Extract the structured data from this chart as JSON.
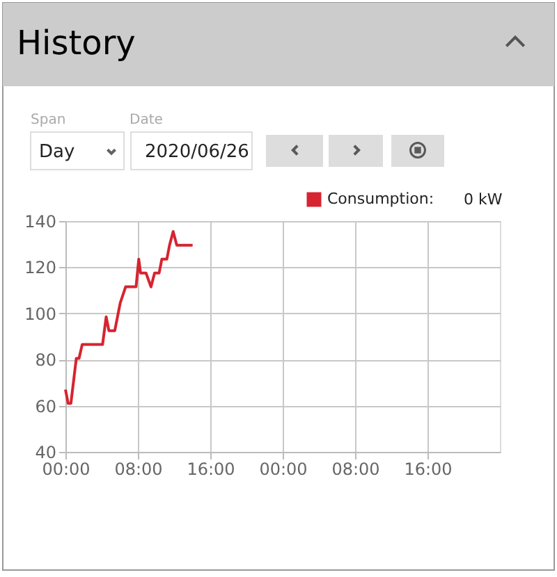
{
  "chart_data": {
    "type": "line",
    "title": "History",
    "annotations": [
      "Span",
      "Day",
      "Date",
      "2020/06/26",
      "0 kW"
    ],
    "x": [
      "2020-06-26T00:00",
      "2020-06-26T00:18",
      "2020-06-26T00:36",
      "2020-06-26T01:12",
      "2020-06-26T01:30",
      "2020-06-26T01:51",
      "2020-06-26T04:06",
      "2020-06-26T04:30",
      "2020-06-26T04:48",
      "2020-06-26T05:27",
      "2020-06-26T05:45",
      "2020-06-26T06:03",
      "2020-06-26T06:39",
      "2020-06-26T07:48",
      "2020-06-26T08:06",
      "2020-06-26T08:18",
      "2020-06-26T08:54",
      "2020-06-26T09:27",
      "2020-06-26T09:51",
      "2020-06-26T10:21",
      "2020-06-26T10:39",
      "2020-06-26T11:12",
      "2020-06-26T11:30",
      "2020-06-26T11:54",
      "2020-06-26T12:18",
      "2020-06-26T14:03"
    ],
    "series": [
      {
        "name": "Consumption:",
        "color": "#d62430",
        "values": [
          67,
          61,
          61,
          80.5,
          80.5,
          86.5,
          86.5,
          98.5,
          92.5,
          92.5,
          98.5,
          104.5,
          111.5,
          111.5,
          123.5,
          117.5,
          117.5,
          111.5,
          117.5,
          117.5,
          123.5,
          123.5,
          129.5,
          135.5,
          129.5,
          129.5
        ]
      }
    ],
    "xlim": [
      "2020-06-26T00:00",
      "2020-06-28T00:00"
    ],
    "xticks": [
      {
        "value": "2020-06-26T00:00",
        "label": "00:00"
      },
      {
        "value": "2020-06-26T08:00",
        "label": "08:00"
      },
      {
        "value": "2020-06-26T16:00",
        "label": "16:00"
      },
      {
        "value": "2020-06-27T00:00",
        "label": "00:00"
      },
      {
        "value": "2020-06-27T08:00",
        "label": "08:00"
      },
      {
        "value": "2020-06-27T16:00",
        "label": "16:00"
      }
    ],
    "ylim": [
      40,
      140
    ],
    "yticks": [
      40,
      60,
      80,
      100,
      120,
      140
    ],
    "grid": true,
    "legend": "top right",
    "marker": "none",
    "line_style": "solid"
  }
}
